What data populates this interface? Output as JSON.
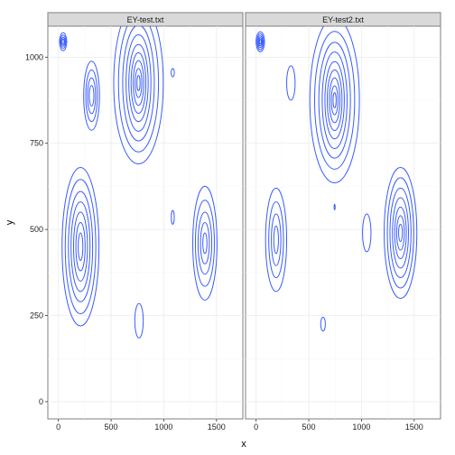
{
  "chart_data": {
    "type": "density-contour",
    "xlabel": "x",
    "ylabel": "y",
    "xlim": [
      -100,
      1750
    ],
    "ylim": [
      -50,
      1090
    ],
    "xticks": [
      0,
      500,
      1000,
      1500
    ],
    "yticks": [
      0,
      250,
      500,
      750,
      1000
    ],
    "line_color": "#3a5cff",
    "panels": [
      {
        "title": "EY-test.txt",
        "clusters": [
          {
            "name": "corner",
            "cx": 45,
            "cy": 1045,
            "rx": [
              10,
              18,
              26,
              34
            ],
            "ry": [
              8,
              13,
              19,
              26
            ]
          },
          {
            "name": "upper-left",
            "cx": 315,
            "cy": 888,
            "rx": [
              22,
              38,
              55,
              75
            ],
            "ry": [
              30,
              52,
              75,
              100
            ]
          },
          {
            "name": "upper-center",
            "cx": 760,
            "cy": 925,
            "rx": [
              15,
              32,
              50,
              70,
              92,
              118,
              150,
              190,
              235
            ],
            "ry": [
              22,
              42,
              65,
              88,
              112,
              140,
              168,
              200,
              235
            ]
          },
          {
            "name": "upper-right-small",
            "cx": 1085,
            "cy": 955,
            "rx": [
              15
            ],
            "ry": [
              12
            ]
          },
          {
            "name": "left",
            "cx": 210,
            "cy": 450,
            "rx": [
              22,
              44,
              66,
              90,
              115,
              145,
              175
            ],
            "ry": [
              40,
              70,
              100,
              130,
              160,
              195,
              230
            ]
          },
          {
            "name": "center-small",
            "cx": 1085,
            "cy": 535,
            "rx": [
              14
            ],
            "ry": [
              20
            ]
          },
          {
            "name": "right",
            "cx": 1390,
            "cy": 460,
            "rx": [
              20,
              42,
              65,
              90,
              115
            ],
            "ry": [
              30,
              60,
              90,
              125,
              165
            ]
          },
          {
            "name": "bottom",
            "cx": 765,
            "cy": 235,
            "rx": [
              40
            ],
            "ry": [
              50
            ]
          }
        ]
      },
      {
        "title": "EY-test2.txt",
        "clusters": [
          {
            "name": "corner",
            "cx": 40,
            "cy": 1045,
            "rx": [
              8,
              15,
              23,
              31,
              40
            ],
            "ry": [
              7,
              12,
              17,
              23,
              29
            ]
          },
          {
            "name": "upper-small",
            "cx": 330,
            "cy": 925,
            "rx": [
              40
            ],
            "ry": [
              50
            ]
          },
          {
            "name": "upper-center",
            "cx": 745,
            "cy": 875,
            "rx": [
              15,
              32,
              50,
              70,
              92,
              118,
              150,
              190,
              235
            ],
            "ry": [
              22,
              42,
              65,
              88,
              112,
              140,
              168,
              200,
              240
            ]
          },
          {
            "name": "left",
            "cx": 190,
            "cy": 470,
            "rx": [
              22,
              45,
              70,
              100
            ],
            "ry": [
              40,
              75,
              110,
              150
            ]
          },
          {
            "name": "mid-dot",
            "cx": 745,
            "cy": 565,
            "rx": [
              5
            ],
            "ry": [
              8
            ]
          },
          {
            "name": "center-right",
            "cx": 1050,
            "cy": 490,
            "rx": [
              40
            ],
            "ry": [
              55
            ]
          },
          {
            "name": "right",
            "cx": 1370,
            "cy": 490,
            "rx": [
              18,
              36,
              55,
              76,
              100,
              125,
              155
            ],
            "ry": [
              25,
              50,
              75,
              102,
              130,
              160,
              190
            ]
          },
          {
            "name": "bottom",
            "cx": 635,
            "cy": 225,
            "rx": [
              22
            ],
            "ry": [
              20
            ]
          }
        ]
      }
    ]
  }
}
